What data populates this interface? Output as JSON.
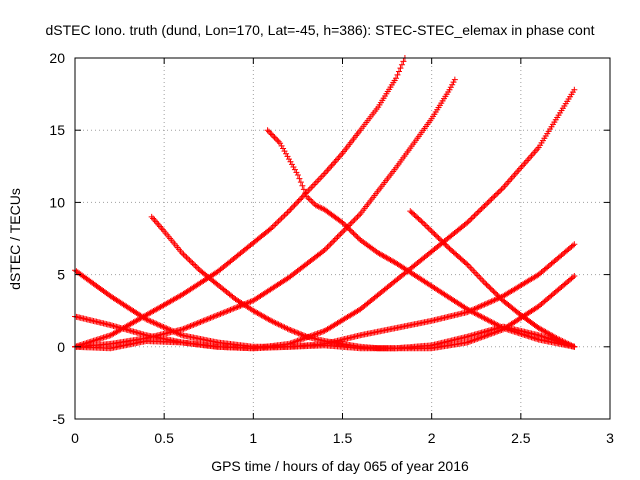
{
  "chart_data": {
    "type": "scatter",
    "title": "dSTEC Iono. truth (dund, Lon=170, Lat=-45, h=386): STEC-STEC_elemax in phase cont",
    "xlabel": "GPS time / hours of day 065 of year 2016",
    "ylabel": "dSTEC  / TECUs",
    "xlim": [
      0,
      3
    ],
    "ylim": [
      -5,
      20
    ],
    "xticks": [
      "0",
      "0.5",
      "1",
      "1.5",
      "2",
      "2.5",
      "3"
    ],
    "yticks": [
      "-5",
      "0",
      "5",
      "10",
      "15",
      "20"
    ],
    "grid": true,
    "marker": "+",
    "color": "#ff0000",
    "series": [
      {
        "x": [
          0.0,
          0.2,
          0.4,
          0.6,
          0.8,
          1.0,
          1.1,
          1.2,
          1.3,
          1.4,
          1.5,
          1.6,
          1.7,
          1.8,
          1.85
        ],
        "y": [
          0.0,
          0.8,
          2.2,
          3.6,
          5.2,
          7.2,
          8.2,
          9.4,
          10.7,
          12.0,
          13.4,
          15.0,
          16.6,
          18.6,
          20.0
        ]
      },
      {
        "x": [
          0.0,
          0.2,
          0.4,
          0.6,
          0.8,
          1.0,
          1.2,
          1.4,
          1.6,
          1.8,
          2.0,
          2.1,
          2.13
        ],
        "y": [
          0.0,
          0.2,
          0.6,
          1.2,
          2.2,
          3.2,
          4.8,
          6.7,
          9.2,
          12.4,
          15.8,
          17.8,
          18.5
        ]
      },
      {
        "x": [
          0.0,
          0.2,
          0.4,
          0.6,
          0.8,
          1.0,
          1.2,
          1.4,
          1.6,
          1.8,
          2.0,
          2.2,
          2.4,
          2.6,
          2.8
        ],
        "y": [
          2.1,
          1.5,
          0.8,
          0.3,
          0.0,
          -0.1,
          0.2,
          1.1,
          2.6,
          4.6,
          6.6,
          8.6,
          11.0,
          13.8,
          17.8
        ]
      },
      {
        "x": [
          0.0,
          0.2,
          0.4,
          0.6,
          0.8,
          1.0,
          1.2,
          1.4,
          1.6,
          1.8,
          2.0,
          2.2,
          2.4,
          2.6,
          2.8
        ],
        "y": [
          5.3,
          3.5,
          1.9,
          0.8,
          0.3,
          0.0,
          0.0,
          0.2,
          0.8,
          1.3,
          1.8,
          2.4,
          3.5,
          5.0,
          7.1
        ]
      },
      {
        "x": [
          0.0,
          0.2,
          0.4,
          0.6,
          0.8,
          1.0,
          1.2,
          1.4,
          1.6,
          1.8,
          2.0,
          2.2,
          2.4,
          2.6,
          2.8
        ],
        "y": [
          0.0,
          -0.1,
          0.4,
          0.3,
          0.0,
          -0.1,
          0.0,
          0.1,
          -0.1,
          -0.1,
          -0.1,
          0.3,
          1.2,
          2.8,
          4.9
        ]
      },
      {
        "x": [
          0.43,
          0.5,
          0.6,
          0.7,
          0.8,
          0.9,
          1.0,
          1.1,
          1.2,
          1.3,
          1.4,
          1.5,
          1.6,
          1.7,
          1.8,
          2.0,
          2.2,
          2.4,
          2.6,
          2.8
        ],
        "y": [
          9.0,
          8.0,
          6.5,
          5.3,
          4.3,
          3.3,
          2.5,
          1.8,
          1.2,
          0.7,
          0.4,
          0.2,
          0.0,
          -0.1,
          -0.1,
          0.1,
          0.7,
          1.4,
          0.8,
          0.0
        ]
      },
      {
        "x": [
          1.08,
          1.15,
          1.2,
          1.25,
          1.3,
          1.35,
          1.4,
          1.5,
          1.6,
          1.7,
          1.8,
          2.0,
          2.2,
          2.4,
          2.6,
          2.8
        ],
        "y": [
          15.0,
          14.1,
          13.0,
          11.9,
          10.4,
          9.8,
          9.5,
          8.6,
          7.4,
          6.5,
          5.8,
          4.2,
          2.6,
          1.3,
          0.5,
          0.0
        ]
      },
      {
        "x": [
          1.88,
          1.95,
          2.0,
          2.1,
          2.2,
          2.3,
          2.4,
          2.5,
          2.6,
          2.7,
          2.8
        ],
        "y": [
          9.4,
          8.6,
          8.0,
          6.8,
          5.7,
          4.4,
          3.2,
          2.2,
          1.3,
          0.6,
          0.0
        ]
      }
    ]
  }
}
